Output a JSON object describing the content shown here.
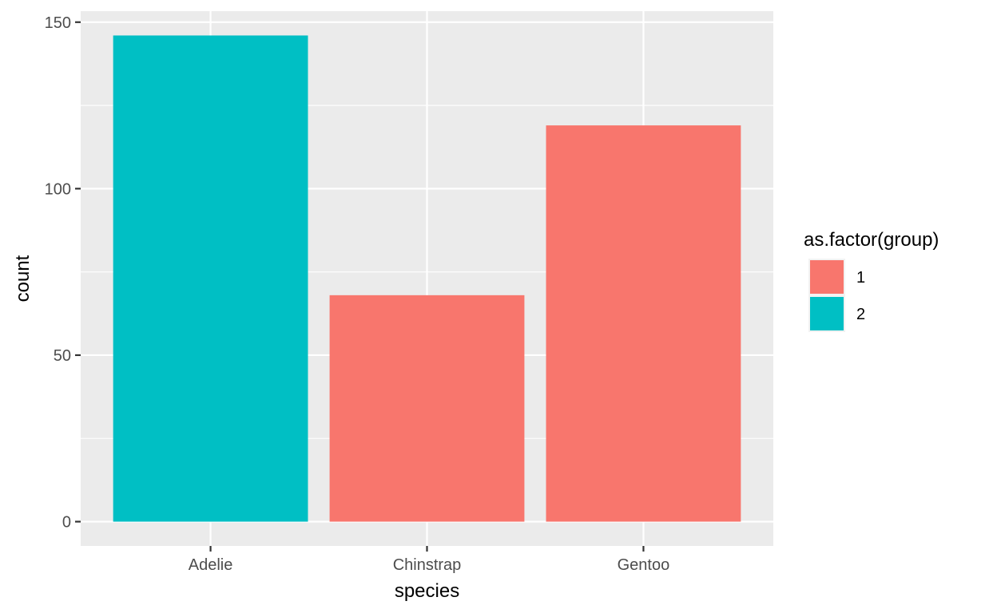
{
  "chart_data": {
    "type": "bar",
    "xlabel": "species",
    "ylabel": "count",
    "categories": [
      "Adelie",
      "Chinstrap",
      "Gentoo"
    ],
    "values": [
      146,
      68,
      119
    ],
    "groups": [
      "2",
      "1",
      "1"
    ],
    "ylim": [
      -7.3,
      153.3
    ],
    "yticks": [
      0,
      50,
      100,
      150
    ],
    "grid": true,
    "legend": {
      "title": "as.factor(group)",
      "position": "right",
      "entries": [
        {
          "label": "1",
          "color": "#F8766D"
        },
        {
          "label": "2",
          "color": "#00BFC4"
        }
      ]
    },
    "colors": {
      "1": "#F8766D",
      "2": "#00BFC4"
    },
    "panel_background": "#EBEBEB",
    "grid_color": "#FFFFFF"
  }
}
